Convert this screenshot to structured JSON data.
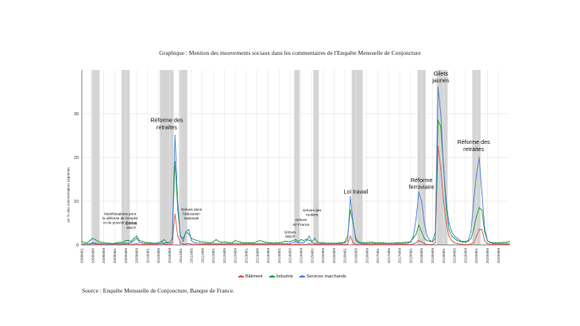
{
  "title": "Graphique : Mention des mouvements sociaux dans les commentaires de l'Enquête Mensuelle de Conjoncture",
  "source": "Source : Enquête Mensuelle de Conjoncture, Banque de France.",
  "chart_data": {
    "type": "line",
    "ylabel": "en % des commentaires exprimés",
    "ylim": [
      0,
      40
    ],
    "yticks": [
      0,
      10,
      20,
      30
    ],
    "grid": true,
    "legend_position": "bottom",
    "start_month": "2008M01",
    "xtick_labels": [
      "2008M01",
      "2008M05",
      "2008M09",
      "2009M01",
      "2009M05",
      "2009M09",
      "2010M01",
      "2010M05",
      "2010M09",
      "2011M01",
      "2011M05",
      "2011M09",
      "2012M01",
      "2012M05",
      "2012M09",
      "2013M01",
      "2013M05",
      "2013M09",
      "2014M01",
      "2014M05",
      "2014M09",
      "2015M01",
      "2015M05",
      "2015M09",
      "2016M01",
      "2016M05",
      "2016M09",
      "2017M01",
      "2017M05",
      "2017M09",
      "2018M01",
      "2018M05",
      "2018M09",
      "2019M01",
      "2019M05",
      "2019M09",
      "2020M01",
      "2020M05",
      "2020M09"
    ],
    "shaded_periods": [
      {
        "start": "2008M05",
        "end": "2008M07"
      },
      {
        "start": "2009M04",
        "end": "2009M06"
      },
      {
        "start": "2010M06",
        "end": "2010M10"
      },
      {
        "start": "2011M01",
        "end": "2011M03"
      },
      {
        "start": "2014M07",
        "end": "2014M08"
      },
      {
        "start": "2015M02",
        "end": "2015M03"
      },
      {
        "start": "2016M04",
        "end": "2016M07"
      },
      {
        "start": "2018M04",
        "end": "2018M06"
      },
      {
        "start": "2018M11",
        "end": "2019M02"
      },
      {
        "start": "2019M12",
        "end": "2020M02"
      }
    ],
    "annotations": [
      {
        "text": [
          "Manifestations pour",
          "la défense de l'emploi",
          "et du pouvoir d'achat"
        ],
        "month": "2009M03",
        "value": 4.8,
        "size": "small"
      },
      {
        "text": [
          "Grèves",
          "SNCF"
        ],
        "month": "2009M07",
        "value": 3.6,
        "size": "small"
      },
      {
        "text": [
          "Réforme des",
          "retraites"
        ],
        "month": "2010M08",
        "value": 26.5,
        "size": "large"
      },
      {
        "text": [
          "Grèves dans",
          "l'éducation",
          "nationale"
        ],
        "month": "2011M05",
        "value": 5.8,
        "size": "small"
      },
      {
        "text": [
          "Grèves",
          "SNCF"
        ],
        "month": "2014M05",
        "value": 1.6,
        "size": "small"
      },
      {
        "text": [
          "Grèves",
          "Air France"
        ],
        "month": "2014M09",
        "value": 4.4,
        "size": "small"
      },
      {
        "text": [
          "Grèves des",
          "routiers"
        ],
        "month": "2015M01",
        "value": 6.6,
        "size": "small"
      },
      {
        "text": [
          "Loi travail"
        ],
        "month": "2016M05",
        "value": 11.7,
        "size": "large"
      },
      {
        "text": [
          "Réforme",
          "ferroviaire"
        ],
        "month": "2018M05",
        "value": 12.8,
        "size": "large"
      },
      {
        "text": [
          "Gilets",
          "jaunes"
        ],
        "month": "2018M12",
        "value": 37.2,
        "size": "large"
      },
      {
        "text": [
          "Réforme des",
          "retraites"
        ],
        "month": "2019M12",
        "value": 21.5,
        "size": "large"
      }
    ],
    "series": [
      {
        "name": "Bâtiment",
        "color": "#d9534f",
        "values": [
          0.1,
          0.1,
          0.2,
          0.2,
          0.3,
          0.2,
          0.1,
          0.1,
          0.1,
          0.1,
          0.1,
          0.1,
          0.1,
          0.1,
          0.2,
          0.2,
          0.2,
          0.2,
          0.1,
          0.2,
          0.3,
          0.1,
          0.1,
          0.1,
          0.1,
          0.1,
          0.1,
          0.1,
          0.2,
          0.3,
          0.2,
          0.1,
          0.1,
          0.4,
          7.0,
          2.0,
          0.5,
          0.2,
          0.2,
          0.3,
          0.2,
          0.1,
          0.1,
          0.1,
          0.1,
          0.1,
          0.1,
          0.1,
          0.1,
          0.1,
          0.1,
          0.1,
          0.1,
          0.1,
          0.1,
          0.1,
          0.1,
          0.1,
          0.1,
          0.1,
          0.1,
          0.1,
          0.1,
          0.1,
          0.1,
          0.1,
          0.1,
          0.1,
          0.1,
          0.1,
          0.1,
          0.1,
          0.1,
          0.1,
          0.1,
          0.1,
          0.1,
          0.1,
          0.1,
          0.1,
          0.1,
          0.1,
          0.1,
          0.3,
          0.1,
          0.1,
          0.1,
          0.1,
          0.1,
          0.1,
          0.1,
          0.1,
          0.1,
          0.1,
          0.1,
          0.1,
          0.1,
          0.2,
          2.0,
          0.5,
          0.1,
          0.1,
          0.1,
          0.1,
          0.1,
          0.1,
          0.1,
          0.1,
          0.1,
          0.1,
          0.1,
          0.1,
          0.1,
          0.1,
          0.1,
          0.1,
          0.1,
          0.1,
          0.1,
          0.1,
          0.1,
          0.2,
          0.5,
          1.0,
          0.7,
          0.3,
          0.1,
          0.1,
          0.1,
          0.5,
          22.5,
          17.5,
          10.0,
          5.0,
          2.0,
          1.0,
          0.5,
          0.3,
          0.2,
          0.1,
          0.1,
          0.1,
          0.2,
          0.5,
          2.0,
          3.5,
          3.5,
          1.0,
          0.3,
          0.1,
          0.1,
          0.1,
          0.1,
          0.1,
          0.1,
          0.1,
          0.1
        ]
      },
      {
        "name": "Industrie",
        "color": "#1e9e3e",
        "values": [
          0.8,
          0.5,
          0.5,
          1.0,
          1.5,
          1.2,
          0.8,
          0.6,
          0.5,
          0.4,
          0.4,
          0.3,
          0.4,
          0.5,
          0.6,
          0.6,
          1.0,
          1.0,
          0.8,
          1.5,
          2.0,
          1.0,
          0.8,
          0.6,
          0.5,
          0.5,
          0.4,
          0.4,
          0.5,
          0.7,
          1.2,
          0.6,
          0.5,
          1.5,
          19.0,
          8.0,
          2.0,
          1.5,
          3.0,
          2.5,
          1.5,
          1.2,
          1.0,
          0.8,
          0.7,
          0.6,
          0.5,
          0.5,
          0.7,
          1.2,
          0.8,
          0.6,
          0.7,
          0.6,
          0.5,
          0.6,
          1.0,
          0.8,
          0.6,
          0.5,
          0.5,
          0.5,
          0.5,
          0.5,
          0.8,
          1.0,
          0.8,
          0.6,
          0.5,
          0.5,
          0.4,
          0.5,
          0.5,
          0.6,
          0.8,
          0.8,
          0.7,
          1.0,
          1.2,
          0.8,
          1.2,
          1.0,
          1.3,
          1.0,
          0.8,
          1.5,
          0.7,
          0.5,
          0.5,
          0.4,
          0.4,
          0.4,
          0.4,
          0.4,
          0.5,
          0.5,
          0.7,
          2.0,
          8.0,
          5.0,
          1.5,
          0.7,
          0.5,
          0.5,
          0.5,
          0.6,
          0.6,
          0.5,
          0.5,
          0.5,
          0.5,
          0.4,
          0.4,
          0.4,
          0.4,
          0.5,
          0.5,
          0.5,
          0.6,
          0.6,
          0.8,
          1.5,
          2.5,
          4.5,
          3.0,
          1.5,
          1.0,
          0.8,
          0.7,
          1.5,
          28.5,
          27.0,
          18.0,
          8.0,
          3.5,
          2.0,
          1.5,
          1.0,
          0.8,
          0.6,
          0.6,
          0.8,
          1.5,
          3.5,
          6.5,
          8.5,
          8.0,
          3.0,
          1.0,
          0.6,
          0.5,
          0.5,
          0.5,
          0.5,
          0.6,
          0.6,
          0.8
        ]
      },
      {
        "name": "Services marchands",
        "color": "#4a7fd4",
        "values": [
          0.2,
          0.2,
          0.2,
          0.3,
          0.5,
          0.4,
          0.3,
          0.3,
          0.2,
          0.2,
          0.2,
          0.2,
          0.2,
          0.3,
          0.3,
          0.3,
          0.4,
          0.4,
          0.5,
          1.0,
          1.5,
          0.6,
          0.4,
          0.3,
          0.3,
          0.3,
          0.3,
          0.3,
          0.4,
          0.8,
          0.4,
          0.4,
          0.5,
          1.5,
          25.0,
          10.0,
          2.0,
          0.8,
          3.0,
          3.5,
          1.0,
          0.5,
          0.4,
          0.4,
          0.3,
          0.3,
          0.3,
          0.3,
          0.3,
          0.3,
          0.3,
          0.3,
          0.3,
          0.3,
          0.3,
          0.3,
          0.4,
          0.3,
          0.3,
          0.3,
          0.3,
          0.3,
          0.3,
          0.3,
          0.3,
          0.3,
          0.3,
          0.3,
          0.3,
          0.3,
          0.3,
          0.3,
          0.3,
          0.3,
          0.3,
          0.3,
          0.3,
          0.5,
          0.8,
          0.5,
          0.5,
          0.5,
          1.0,
          2.0,
          0.5,
          0.3,
          0.3,
          0.3,
          0.3,
          0.3,
          0.3,
          0.3,
          0.3,
          0.3,
          0.3,
          0.3,
          0.5,
          1.0,
          11.0,
          5.0,
          1.0,
          0.5,
          0.3,
          0.3,
          0.3,
          0.3,
          0.3,
          0.3,
          0.3,
          0.3,
          0.3,
          0.3,
          0.3,
          0.3,
          0.3,
          0.3,
          0.3,
          0.3,
          0.3,
          0.4,
          0.6,
          2.0,
          6.0,
          12.0,
          10.0,
          5.0,
          2.0,
          1.0,
          0.8,
          3.0,
          36.0,
          30.0,
          18.0,
          10.0,
          5.0,
          3.0,
          2.0,
          1.5,
          1.0,
          0.8,
          0.8,
          1.0,
          3.0,
          10.0,
          16.0,
          20.0,
          12.0,
          4.0,
          1.0,
          0.5,
          0.3,
          0.3,
          0.3,
          0.3,
          0.3,
          0.3,
          0.3
        ]
      }
    ]
  }
}
